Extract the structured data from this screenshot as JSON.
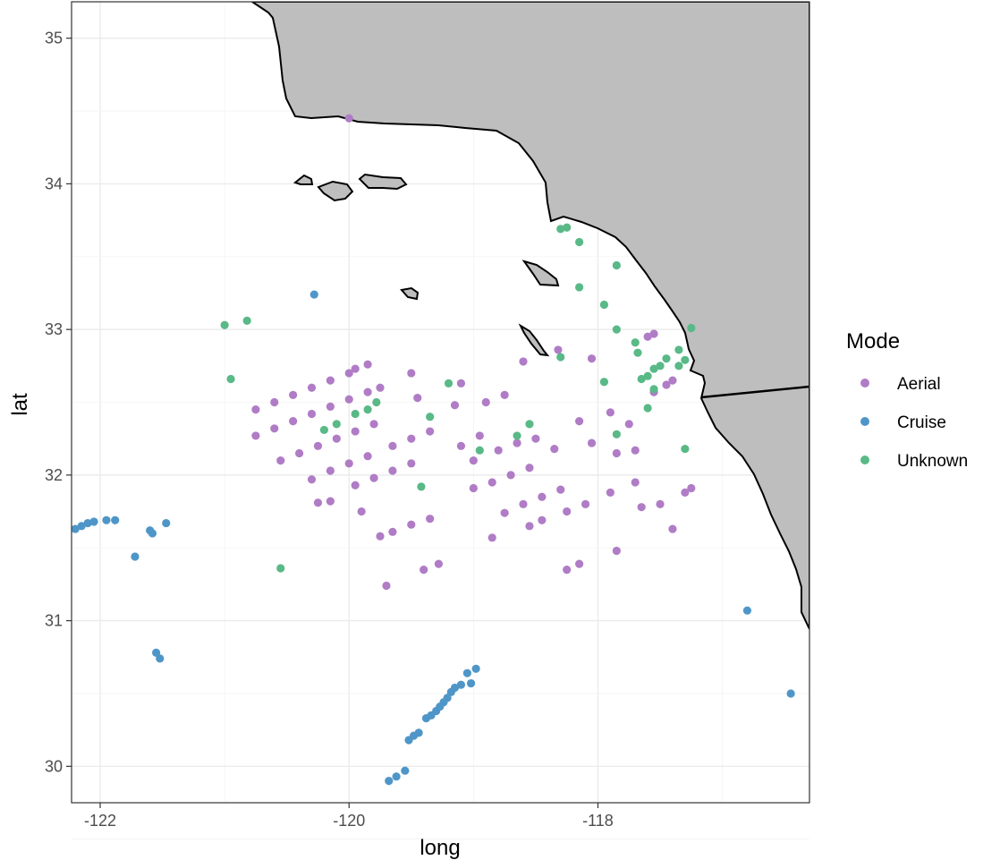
{
  "chart_data": {
    "type": "scatter",
    "title": "",
    "xlabel": "long",
    "ylabel": "lat",
    "xlim": [
      -122.23,
      -116.3
    ],
    "ylim": [
      29.75,
      35.25
    ],
    "x_ticks": [
      -122,
      -120,
      -118
    ],
    "y_ticks": [
      30,
      31,
      32,
      33,
      34,
      35
    ],
    "x_tick_labels": [
      "-122",
      "-120",
      "-118"
    ],
    "y_tick_labels": [
      "30",
      "31",
      "32",
      "33",
      "34",
      "35"
    ],
    "grid": true,
    "legend": {
      "title": "Mode",
      "position": "right"
    },
    "series": [
      {
        "name": "Aerial",
        "color": "#b07cc6",
        "points": [
          [
            -120.0,
            34.45
          ],
          [
            -120.75,
            32.45
          ],
          [
            -120.6,
            32.5
          ],
          [
            -120.45,
            32.55
          ],
          [
            -120.3,
            32.6
          ],
          [
            -120.15,
            32.65
          ],
          [
            -120.0,
            32.7
          ],
          [
            -119.95,
            32.73
          ],
          [
            -120.75,
            32.27
          ],
          [
            -120.6,
            32.32
          ],
          [
            -120.45,
            32.37
          ],
          [
            -120.3,
            32.42
          ],
          [
            -120.15,
            32.47
          ],
          [
            -120.0,
            32.52
          ],
          [
            -119.85,
            32.57
          ],
          [
            -119.75,
            32.6
          ],
          [
            -119.85,
            32.76
          ],
          [
            -120.55,
            32.1
          ],
          [
            -120.4,
            32.15
          ],
          [
            -120.25,
            32.2
          ],
          [
            -120.1,
            32.25
          ],
          [
            -119.95,
            32.3
          ],
          [
            -119.8,
            32.35
          ],
          [
            -120.15,
            32.03
          ],
          [
            -120.0,
            32.08
          ],
          [
            -119.85,
            32.13
          ],
          [
            -119.65,
            32.2
          ],
          [
            -119.5,
            32.25
          ],
          [
            -119.35,
            32.3
          ],
          [
            -119.45,
            32.53
          ],
          [
            -119.5,
            32.7
          ],
          [
            -119.95,
            31.93
          ],
          [
            -119.8,
            31.98
          ],
          [
            -119.65,
            32.03
          ],
          [
            -119.5,
            32.08
          ],
          [
            -120.3,
            31.97
          ],
          [
            -120.25,
            31.81
          ],
          [
            -120.15,
            31.82
          ],
          [
            -119.9,
            31.75
          ],
          [
            -119.75,
            31.58
          ],
          [
            -119.65,
            31.61
          ],
          [
            -119.5,
            31.66
          ],
          [
            -119.35,
            31.7
          ],
          [
            -119.7,
            31.24
          ],
          [
            -119.4,
            31.35
          ],
          [
            -119.28,
            31.39
          ],
          [
            -119.1,
            32.63
          ],
          [
            -119.15,
            32.48
          ],
          [
            -119.1,
            32.2
          ],
          [
            -118.95,
            32.27
          ],
          [
            -119.0,
            32.1
          ],
          [
            -118.8,
            32.17
          ],
          [
            -118.65,
            32.22
          ],
          [
            -119.0,
            31.91
          ],
          [
            -118.85,
            31.95
          ],
          [
            -118.7,
            32.0
          ],
          [
            -118.55,
            32.05
          ],
          [
            -118.85,
            31.57
          ],
          [
            -118.75,
            31.74
          ],
          [
            -118.6,
            31.8
          ],
          [
            -118.45,
            31.85
          ],
          [
            -118.3,
            31.9
          ],
          [
            -118.55,
            31.65
          ],
          [
            -118.45,
            31.69
          ],
          [
            -118.25,
            31.75
          ],
          [
            -118.1,
            31.8
          ],
          [
            -118.25,
            31.35
          ],
          [
            -118.15,
            31.39
          ],
          [
            -118.6,
            32.78
          ],
          [
            -118.32,
            32.86
          ],
          [
            -118.05,
            32.8
          ],
          [
            -117.9,
            32.43
          ],
          [
            -117.75,
            32.35
          ],
          [
            -117.7,
            32.17
          ],
          [
            -118.15,
            32.37
          ],
          [
            -118.05,
            32.22
          ],
          [
            -117.9,
            31.88
          ],
          [
            -117.7,
            31.95
          ],
          [
            -117.65,
            31.78
          ],
          [
            -117.5,
            31.8
          ],
          [
            -117.4,
            31.63
          ],
          [
            -117.85,
            31.48
          ],
          [
            -117.3,
            31.88
          ],
          [
            -117.25,
            31.91
          ],
          [
            -117.45,
            32.62
          ],
          [
            -117.4,
            32.65
          ],
          [
            -117.55,
            32.57
          ],
          [
            -117.55,
            32.97
          ],
          [
            -117.6,
            32.95
          ],
          [
            -117.85,
            32.15
          ],
          [
            -118.5,
            32.25
          ],
          [
            -118.35,
            32.18
          ],
          [
            -118.9,
            32.5
          ],
          [
            -118.75,
            32.55
          ]
        ]
      },
      {
        "name": "Cruise",
        "color": "#4f96c8",
        "points": [
          [
            -122.2,
            31.63
          ],
          [
            -122.15,
            31.65
          ],
          [
            -122.1,
            31.67
          ],
          [
            -122.05,
            31.68
          ],
          [
            -121.95,
            31.69
          ],
          [
            -121.88,
            31.69
          ],
          [
            -121.6,
            31.62
          ],
          [
            -121.58,
            31.6
          ],
          [
            -121.47,
            31.67
          ],
          [
            -121.72,
            31.44
          ],
          [
            -121.55,
            30.78
          ],
          [
            -121.52,
            30.74
          ],
          [
            -120.28,
            33.24
          ],
          [
            -119.68,
            29.9
          ],
          [
            -119.62,
            29.93
          ],
          [
            -119.55,
            29.97
          ],
          [
            -119.52,
            30.18
          ],
          [
            -119.48,
            30.21
          ],
          [
            -119.44,
            30.23
          ],
          [
            -119.38,
            30.33
          ],
          [
            -119.34,
            30.35
          ],
          [
            -119.3,
            30.38
          ],
          [
            -119.27,
            30.41
          ],
          [
            -119.24,
            30.44
          ],
          [
            -119.21,
            30.47
          ],
          [
            -119.18,
            30.51
          ],
          [
            -119.15,
            30.54
          ],
          [
            -119.1,
            30.56
          ],
          [
            -119.05,
            30.64
          ],
          [
            -118.98,
            30.67
          ],
          [
            -119.02,
            30.57
          ],
          [
            -116.8,
            31.07
          ],
          [
            -116.45,
            30.5
          ]
        ]
      },
      {
        "name": "Unknown",
        "color": "#59b987",
        "points": [
          [
            -121.0,
            33.03
          ],
          [
            -120.82,
            33.06
          ],
          [
            -120.95,
            32.66
          ],
          [
            -120.55,
            31.36
          ],
          [
            -120.2,
            32.31
          ],
          [
            -120.1,
            32.35
          ],
          [
            -119.95,
            32.42
          ],
          [
            -119.85,
            32.45
          ],
          [
            -119.78,
            32.5
          ],
          [
            -119.35,
            32.4
          ],
          [
            -119.2,
            32.63
          ],
          [
            -119.42,
            31.92
          ],
          [
            -118.95,
            32.17
          ],
          [
            -118.65,
            32.27
          ],
          [
            -118.55,
            32.35
          ],
          [
            -118.3,
            33.69
          ],
          [
            -118.25,
            33.7
          ],
          [
            -118.15,
            33.6
          ],
          [
            -118.15,
            33.29
          ],
          [
            -117.95,
            33.17
          ],
          [
            -117.85,
            33.44
          ],
          [
            -117.85,
            33.0
          ],
          [
            -117.7,
            32.91
          ],
          [
            -117.68,
            32.84
          ],
          [
            -117.65,
            32.66
          ],
          [
            -117.6,
            32.68
          ],
          [
            -117.55,
            32.73
          ],
          [
            -117.5,
            32.75
          ],
          [
            -117.45,
            32.8
          ],
          [
            -117.35,
            32.86
          ],
          [
            -117.35,
            32.75
          ],
          [
            -117.3,
            32.79
          ],
          [
            -117.25,
            33.01
          ],
          [
            -117.95,
            32.64
          ],
          [
            -117.85,
            32.28
          ],
          [
            -117.6,
            32.46
          ],
          [
            -117.55,
            32.59
          ],
          [
            -117.3,
            32.18
          ],
          [
            -118.3,
            32.81
          ]
        ]
      }
    ]
  },
  "map": {
    "land_fill": "#bebebe",
    "outline_color": "#000000"
  }
}
